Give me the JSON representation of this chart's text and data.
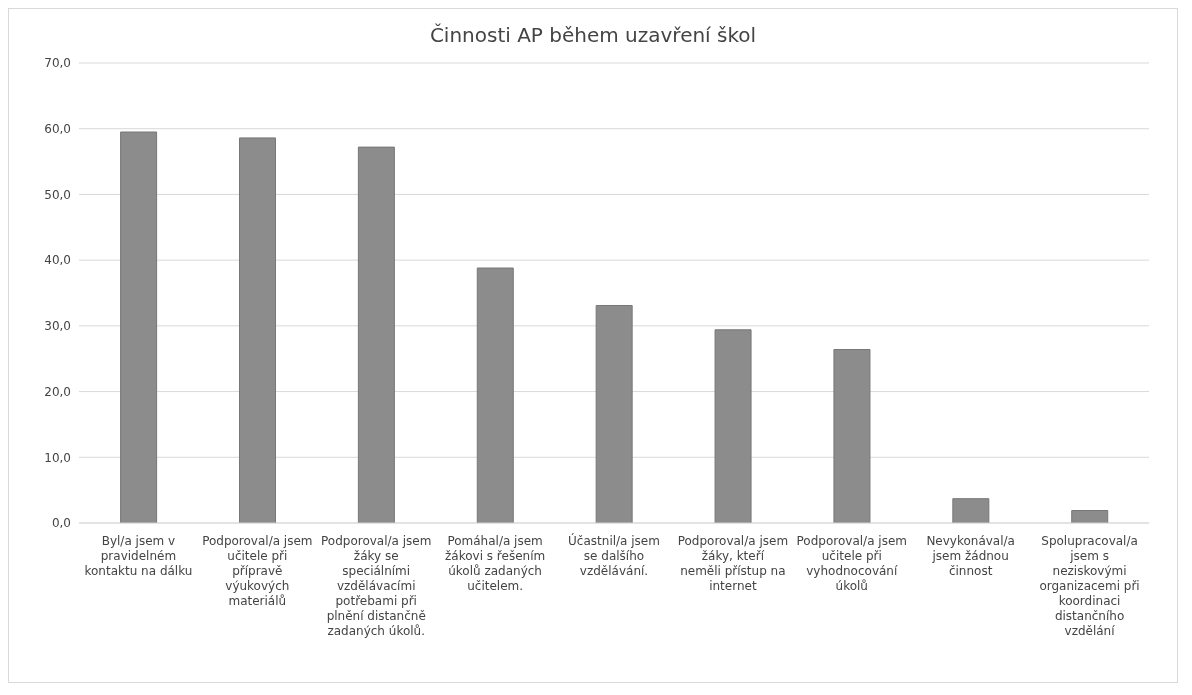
{
  "chart_data": {
    "type": "bar",
    "title": "Činnosti AP během uzavření škol",
    "categories": [
      "Byl/a jsem v pravidelném kontaktu na dálku",
      "Podporoval/a jsem učitele při přípravě výukových materiálů",
      "Podporoval/a jsem žáky se speciálními vzdělávacími potřebami při plnění distančně zadaných úkolů.",
      "Pomáhal/a jsem žákovi s řešením úkolů zadaných učitelem.",
      "Účastnil/a jsem se dalšího vzdělávání.",
      "Podporoval/a jsem žáky, kteří neměli přístup na internet",
      "Podporoval/a jsem učitele při vyhodnocování úkolů",
      "Nevykonával/a jsem žádnou činnost",
      "Spolupracoval/a jsem s neziskovými organizacemi při koordinaci distančního vzdělání"
    ],
    "values": [
      59.5,
      58.6,
      57.2,
      38.8,
      33.1,
      29.4,
      26.4,
      3.7,
      1.9
    ],
    "color": "#8c8c8c",
    "ylim": [
      0,
      70
    ],
    "yticks": [
      {
        "value": 0,
        "label": "0,0"
      },
      {
        "value": 10,
        "label": "10,0"
      },
      {
        "value": 20,
        "label": "20,0"
      },
      {
        "value": 30,
        "label": "30,0"
      },
      {
        "value": 40,
        "label": "40,0"
      },
      {
        "value": 50,
        "label": "50,0"
      },
      {
        "value": 60,
        "label": "60,0"
      },
      {
        "value": 70,
        "label": "70,0"
      }
    ],
    "grid": "y",
    "legend": false
  }
}
